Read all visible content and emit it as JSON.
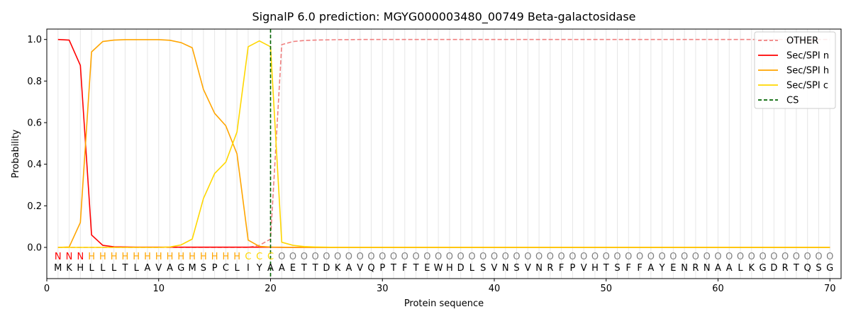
{
  "chart_data": {
    "type": "line",
    "title": "SignalP 6.0 prediction: MGYG000003480_00749 Beta-galactosidase",
    "xlabel": "Protein sequence",
    "ylabel": "Probability",
    "xlim": [
      0,
      71
    ],
    "ylim": [
      -0.15,
      1.05
    ],
    "x_ticks": [
      0,
      10,
      20,
      30,
      40,
      50,
      60,
      70
    ],
    "y_ticks": [
      0.0,
      0.2,
      0.4,
      0.6,
      0.8,
      1.0
    ],
    "x_tick_labels": [
      "0",
      "10",
      "20",
      "30",
      "40",
      "50",
      "60",
      "70"
    ],
    "y_tick_labels": [
      "0.0",
      "0.2",
      "0.4",
      "0.6",
      "0.8",
      "1.0"
    ],
    "grid": "vertical",
    "legend_placement": "top-right",
    "sequence": [
      "M",
      "K",
      "H",
      "L",
      "L",
      "L",
      "T",
      "L",
      "A",
      "V",
      "A",
      "G",
      "M",
      "S",
      "P",
      "C",
      "L",
      "I",
      "Y",
      "A",
      "A",
      "E",
      "T",
      "T",
      "D",
      "K",
      "A",
      "V",
      "Q",
      "P",
      "T",
      "F",
      "T",
      "E",
      "W",
      "H",
      "D",
      "L",
      "S",
      "V",
      "N",
      "S",
      "V",
      "N",
      "R",
      "F",
      "P",
      "V",
      "H",
      "T",
      "S",
      "F",
      "F",
      "A",
      "Y",
      "E",
      "N",
      "R",
      "N",
      "A",
      "A",
      "L",
      "K",
      "G",
      "D",
      "R",
      "T",
      "Q",
      "S",
      "G"
    ],
    "region_labels": [
      "N",
      "N",
      "N",
      "H",
      "H",
      "H",
      "H",
      "H",
      "H",
      "H",
      "H",
      "H",
      "H",
      "H",
      "H",
      "H",
      "H",
      "C",
      "C",
      "C",
      "O",
      "O",
      "O",
      "O",
      "O",
      "O",
      "O",
      "O",
      "O",
      "O",
      "O",
      "O",
      "O",
      "O",
      "O",
      "O",
      "O",
      "O",
      "O",
      "O",
      "O",
      "O",
      "O",
      "O",
      "O",
      "O",
      "O",
      "O",
      "O",
      "O",
      "O",
      "O",
      "O",
      "O",
      "O",
      "O",
      "O",
      "O",
      "O",
      "O",
      "O",
      "O",
      "O",
      "O",
      "O",
      "O",
      "O",
      "O",
      "O",
      "O"
    ],
    "region_colors": {
      "N": "#ff0000",
      "H": "#ffa500",
      "C": "#ffd700",
      "O": "#808080"
    },
    "cleavage_site": 20,
    "series": [
      {
        "name": "OTHER",
        "color": "#f08080",
        "style": "dashed",
        "values": [
          0,
          0,
          0,
          0,
          0,
          0,
          0,
          0,
          0,
          0,
          0,
          0,
          0,
          0,
          0,
          0,
          0,
          0,
          0.01,
          0.04,
          0.975,
          0.99,
          0.995,
          0.997,
          0.998,
          0.999,
          0.999,
          1,
          1,
          1,
          1,
          1,
          1,
          1,
          1,
          1,
          1,
          1,
          1,
          1,
          1,
          1,
          1,
          1,
          1,
          1,
          1,
          1,
          1,
          1,
          1,
          1,
          1,
          1,
          1,
          1,
          1,
          1,
          1,
          1,
          1,
          1,
          1,
          1,
          1,
          1,
          1,
          1,
          1,
          1
        ]
      },
      {
        "name": "Sec/SPI n",
        "color": "#ff0000",
        "style": "solid",
        "values": [
          1.0,
          0.997,
          0.875,
          0.06,
          0.01,
          0.003,
          0.002,
          0.001,
          0.001,
          0.001,
          0.001,
          0.001,
          0.001,
          0.001,
          0.001,
          0.001,
          0.001,
          0.001,
          0.001,
          0.001,
          0,
          0,
          0,
          0,
          0,
          0,
          0,
          0,
          0,
          0,
          0,
          0,
          0,
          0,
          0,
          0,
          0,
          0,
          0,
          0,
          0,
          0,
          0,
          0,
          0,
          0,
          0,
          0,
          0,
          0,
          0,
          0,
          0,
          0,
          0,
          0,
          0,
          0,
          0,
          0,
          0,
          0,
          0,
          0,
          0,
          0,
          0,
          0,
          0,
          0
        ]
      },
      {
        "name": "Sec/SPI h",
        "color": "#ffa500",
        "style": "solid",
        "values": [
          0,
          0.002,
          0.12,
          0.94,
          0.99,
          0.997,
          0.999,
          0.999,
          0.999,
          0.999,
          0.996,
          0.985,
          0.96,
          0.76,
          0.645,
          0.585,
          0.45,
          0.035,
          0.005,
          0.002,
          0.001,
          0,
          0,
          0,
          0,
          0,
          0,
          0,
          0,
          0,
          0,
          0,
          0,
          0,
          0,
          0,
          0,
          0,
          0,
          0,
          0,
          0,
          0,
          0,
          0,
          0,
          0,
          0,
          0,
          0,
          0,
          0,
          0,
          0,
          0,
          0,
          0,
          0,
          0,
          0,
          0,
          0,
          0,
          0,
          0,
          0,
          0,
          0,
          0,
          0
        ]
      },
      {
        "name": "Sec/SPI c",
        "color": "#ffd700",
        "style": "solid",
        "values": [
          0,
          0,
          0,
          0,
          0,
          0,
          0,
          0,
          0,
          0,
          0.002,
          0.012,
          0.04,
          0.235,
          0.355,
          0.41,
          0.555,
          0.965,
          0.993,
          0.965,
          0.025,
          0.01,
          0.004,
          0.002,
          0.001,
          0,
          0,
          0,
          0,
          0,
          0,
          0,
          0,
          0,
          0,
          0,
          0,
          0,
          0,
          0,
          0,
          0,
          0,
          0,
          0,
          0,
          0,
          0,
          0,
          0,
          0,
          0,
          0,
          0,
          0,
          0,
          0,
          0,
          0,
          0,
          0,
          0,
          0,
          0,
          0,
          0,
          0,
          0,
          0,
          0
        ]
      }
    ],
    "legend": [
      {
        "name": "OTHER",
        "color": "#f08080",
        "style": "dashed"
      },
      {
        "name": "Sec/SPI n",
        "color": "#ff0000",
        "style": "solid"
      },
      {
        "name": "Sec/SPI h",
        "color": "#ffa500",
        "style": "solid"
      },
      {
        "name": "Sec/SPI c",
        "color": "#ffd700",
        "style": "solid"
      },
      {
        "name": "CS",
        "color": "#006400",
        "style": "dashed"
      }
    ]
  }
}
